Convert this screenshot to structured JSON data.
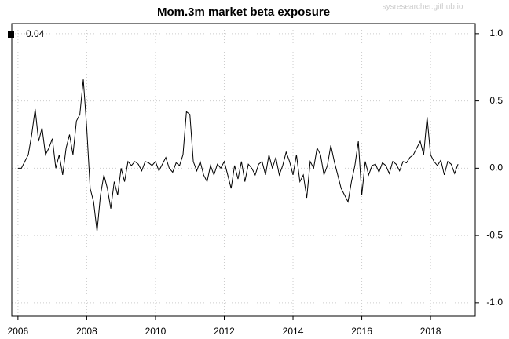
{
  "chart_data": {
    "type": "line",
    "title": "Mom.3m market beta exposure",
    "watermark": "sysresearcher.github.io",
    "x": [
      2006.0,
      2006.1,
      2006.2,
      2006.3,
      2006.4,
      2006.5,
      2006.6,
      2006.7,
      2006.8,
      2006.9,
      2007.0,
      2007.1,
      2007.2,
      2007.3,
      2007.4,
      2007.5,
      2007.6,
      2007.7,
      2007.8,
      2007.9,
      2008.0,
      2008.1,
      2008.2,
      2008.3,
      2008.4,
      2008.5,
      2008.6,
      2008.7,
      2008.8,
      2008.9,
      2009.0,
      2009.1,
      2009.2,
      2009.3,
      2009.4,
      2009.5,
      2009.6,
      2009.7,
      2009.8,
      2009.9,
      2010.0,
      2010.1,
      2010.2,
      2010.3,
      2010.4,
      2010.5,
      2010.6,
      2010.7,
      2010.8,
      2010.9,
      2011.0,
      2011.1,
      2011.2,
      2011.3,
      2011.4,
      2011.5,
      2011.6,
      2011.7,
      2011.8,
      2011.9,
      2012.0,
      2012.1,
      2012.2,
      2012.3,
      2012.4,
      2012.5,
      2012.6,
      2012.7,
      2012.8,
      2012.9,
      2013.0,
      2013.1,
      2013.2,
      2013.3,
      2013.4,
      2013.5,
      2013.6,
      2013.7,
      2013.8,
      2013.9,
      2014.0,
      2014.1,
      2014.2,
      2014.3,
      2014.4,
      2014.5,
      2014.6,
      2014.7,
      2014.8,
      2014.9,
      2015.0,
      2015.1,
      2015.2,
      2015.3,
      2015.4,
      2015.5,
      2015.6,
      2015.7,
      2015.8,
      2015.9,
      2016.0,
      2016.1,
      2016.2,
      2016.3,
      2016.4,
      2016.5,
      2016.6,
      2016.7,
      2016.8,
      2016.9,
      2017.0,
      2017.1,
      2017.2,
      2017.3,
      2017.4,
      2017.5,
      2017.6,
      2017.7,
      2017.8,
      2017.9,
      2018.0,
      2018.1,
      2018.2,
      2018.3,
      2018.4,
      2018.5,
      2018.6,
      2018.7,
      2018.8
    ],
    "series": [
      {
        "name": "0.04",
        "color": "#000000",
        "values": [
          0,
          0,
          0.05,
          0.1,
          0.25,
          0.44,
          0.2,
          0.3,
          0.1,
          0.15,
          0.22,
          0.0,
          0.1,
          -0.05,
          0.15,
          0.25,
          0.1,
          0.35,
          0.4,
          0.66,
          0.3,
          -0.15,
          -0.25,
          -0.47,
          -0.2,
          -0.05,
          -0.15,
          -0.3,
          -0.1,
          -0.2,
          0.0,
          -0.1,
          0.05,
          0.02,
          0.05,
          0.03,
          -0.02,
          0.05,
          0.04,
          0.02,
          0.05,
          -0.02,
          0.03,
          0.08,
          0.0,
          -0.03,
          0.04,
          0.02,
          0.1,
          0.42,
          0.4,
          0.05,
          -0.02,
          0.05,
          -0.05,
          -0.1,
          0.02,
          -0.05,
          0.03,
          0.0,
          0.05,
          -0.05,
          -0.15,
          0.02,
          -0.08,
          0.05,
          -0.1,
          0.03,
          0.0,
          -0.05,
          0.03,
          0.05,
          -0.05,
          0.1,
          0.0,
          0.08,
          -0.05,
          0.02,
          0.12,
          0.05,
          -0.05,
          0.1,
          -0.1,
          -0.05,
          -0.22,
          0.05,
          0.0,
          0.15,
          0.1,
          -0.05,
          0.02,
          0.17,
          0.05,
          -0.05,
          -0.15,
          -0.2,
          -0.25,
          -0.1,
          0.02,
          0.2,
          -0.2,
          0.05,
          -0.05,
          0.02,
          0.03,
          -0.03,
          0.04,
          0.02,
          -0.04,
          0.05,
          0.03,
          -0.02,
          0.05,
          0.04,
          0.08,
          0.1,
          0.15,
          0.2,
          0.1,
          0.38,
          0.1,
          0.05,
          0.02,
          0.06,
          -0.05,
          0.05,
          0.03,
          -0.04,
          0.03
        ]
      }
    ],
    "xlim": [
      2005.82,
      2019.3
    ],
    "xticks": [
      2006,
      2008,
      2010,
      2012,
      2014,
      2016,
      2018
    ],
    "ylim": [
      -1.1,
      1.075
    ],
    "yticks": [
      {
        "value": -1,
        "label": "-1.0"
      },
      -0.5,
      {
        "value": 0,
        "label": "0.0"
      },
      0.5,
      {
        "value": 1,
        "label": "1.0"
      }
    ],
    "grid": true,
    "legend": "top-left"
  }
}
